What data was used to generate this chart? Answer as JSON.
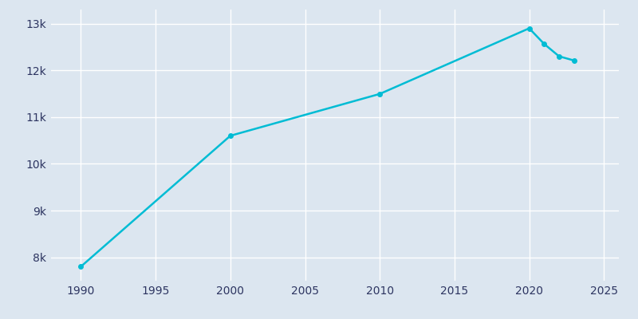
{
  "years": [
    1990,
    2000,
    2010,
    2020,
    2021,
    2022,
    2023
  ],
  "population": [
    7803,
    10601,
    11496,
    12899,
    12565,
    12300,
    12211
  ],
  "line_color": "#00bcd4",
  "marker_color": "#00bcd4",
  "background_color": "#dce6f0",
  "plot_bg_color": "#dce6f0",
  "grid_color": "#ffffff",
  "tick_color": "#2d3561",
  "xlim": [
    1988,
    2026
  ],
  "ylim": [
    7500,
    13300
  ],
  "xticks": [
    1990,
    1995,
    2000,
    2005,
    2010,
    2015,
    2020,
    2025
  ],
  "ytick_values": [
    8000,
    9000,
    10000,
    11000,
    12000,
    13000
  ],
  "ytick_labels": [
    "8k",
    "9k",
    "10k",
    "11k",
    "12k",
    "13k"
  ]
}
